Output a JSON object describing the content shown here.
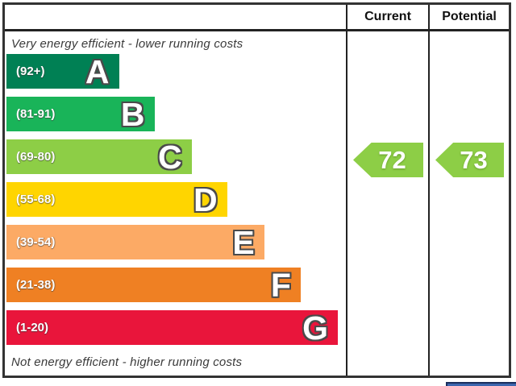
{
  "header": {
    "current_label": "Current",
    "potential_label": "Potential"
  },
  "captions": {
    "top": "Very energy efficient - lower running costs",
    "bottom": "Not energy efficient - higher running costs"
  },
  "chart_data": {
    "type": "bar",
    "subtype": "epc-energy-efficiency-rating",
    "orientation": "horizontal",
    "bands": [
      {
        "letter": "A",
        "range": "(92+)",
        "color": "#008054",
        "width_pct": 33.3
      },
      {
        "letter": "B",
        "range": "(81-91)",
        "color": "#19b459",
        "width_pct": 43.8
      },
      {
        "letter": "C",
        "range": "(69-80)",
        "color": "#8dce46",
        "width_pct": 54.8
      },
      {
        "letter": "D",
        "range": "(55-68)",
        "color": "#ffd500",
        "width_pct": 65.3
      },
      {
        "letter": "E",
        "range": "(39-54)",
        "color": "#fcaa65",
        "width_pct": 76.3
      },
      {
        "letter": "F",
        "range": "(21-38)",
        "color": "#ef8023",
        "width_pct": 87.1
      },
      {
        "letter": "G",
        "range": "(1-20)",
        "color": "#e9153b",
        "width_pct": 98.1
      }
    ],
    "current": {
      "value": "72",
      "band": "C",
      "color": "#8dce46"
    },
    "potential": {
      "value": "73",
      "band": "C",
      "color": "#8dce46"
    },
    "legend_position": "none",
    "grid": false
  },
  "misc": {
    "cropped_blue_color": "#3c66ae"
  }
}
